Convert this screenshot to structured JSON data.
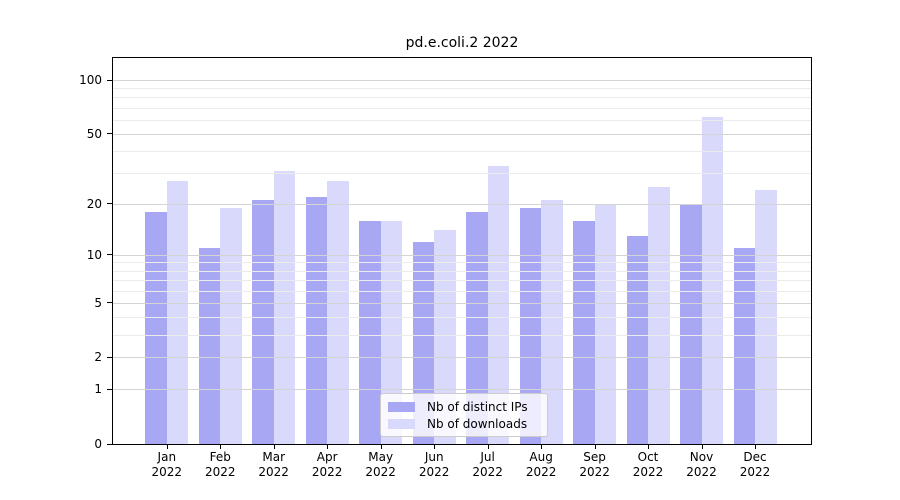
{
  "chart_data": {
    "type": "bar",
    "title": "pd.e.coli.2 2022",
    "year_label": "2022",
    "categories": [
      "Jan",
      "Feb",
      "Mar",
      "Apr",
      "May",
      "Jun",
      "Jul",
      "Aug",
      "Sep",
      "Oct",
      "Nov",
      "Dec"
    ],
    "series": [
      {
        "name": "Nb of distinct IPs",
        "color": "#a7a7f4",
        "values": [
          18,
          11,
          21,
          22,
          16,
          12,
          18,
          19,
          16,
          13,
          20,
          11
        ]
      },
      {
        "name": "Nb of downloads",
        "color": "#d9d9fb",
        "values": [
          27,
          19,
          31,
          27,
          16,
          14,
          33,
          21,
          20,
          25,
          62,
          24
        ]
      }
    ],
    "y_axis": {
      "scale": "log1p",
      "range": [
        0,
        100
      ],
      "ticks": [
        100,
        50,
        20,
        10,
        5,
        2,
        1,
        0
      ],
      "tick_labels": [
        "100",
        "50",
        "20",
        "10",
        "5",
        "2",
        "1",
        "0"
      ],
      "minor_gridlines": [
        90,
        80,
        70,
        60,
        40,
        30,
        9,
        8,
        7,
        6,
        4,
        3
      ]
    },
    "legend_position": "bottom-center",
    "grid": true,
    "colors": {
      "grid_major": "#d4d4d4",
      "grid_minor": "#ebebeb",
      "spine": "#000000",
      "legend_border": "#cccccc"
    }
  }
}
